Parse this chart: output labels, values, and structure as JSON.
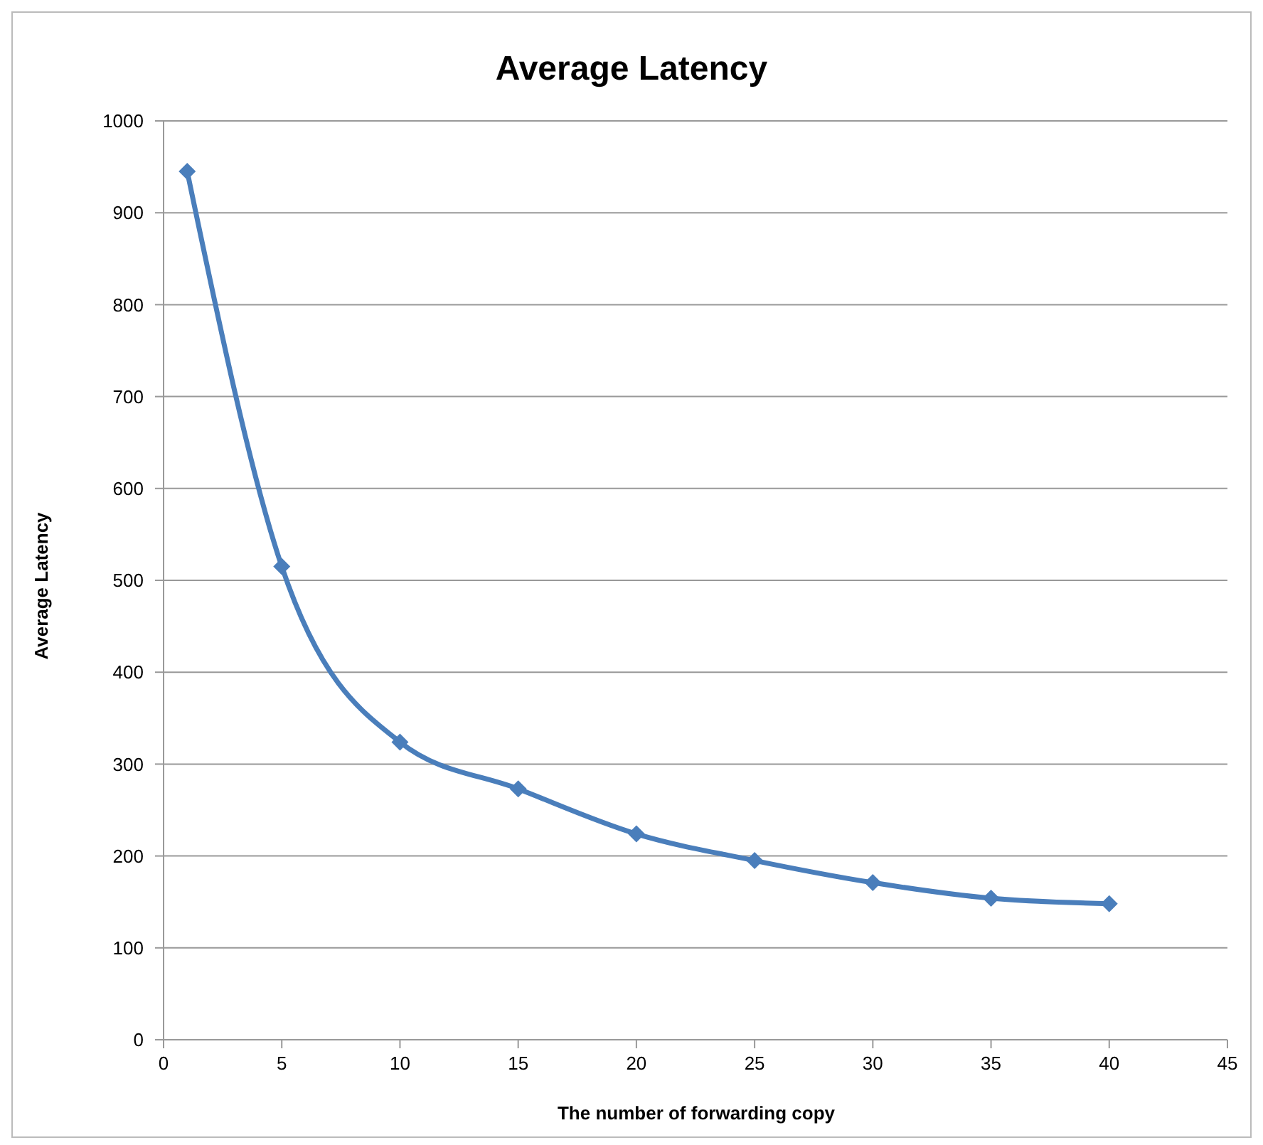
{
  "chart_data": {
    "type": "line",
    "title": "Average Latency",
    "xlabel": "The number of forwarding copy",
    "ylabel": "Average Latency",
    "x": [
      1,
      5,
      10,
      15,
      20,
      25,
      30,
      35,
      40
    ],
    "series": [
      {
        "color": "#4a7ebb",
        "values": [
          945,
          515,
          324,
          273,
          224,
          195,
          171,
          154,
          148
        ]
      }
    ],
    "xlim": [
      0,
      45
    ],
    "xticks": [
      0,
      5,
      10,
      15,
      20,
      25,
      30,
      35,
      40,
      45
    ],
    "ylim": [
      0,
      1000
    ],
    "yticks": [
      0,
      100,
      200,
      300,
      400,
      500,
      600,
      700,
      800,
      900,
      1000
    ],
    "grid": "y",
    "legend": false,
    "marker": "diamond",
    "line_style": "solid"
  }
}
